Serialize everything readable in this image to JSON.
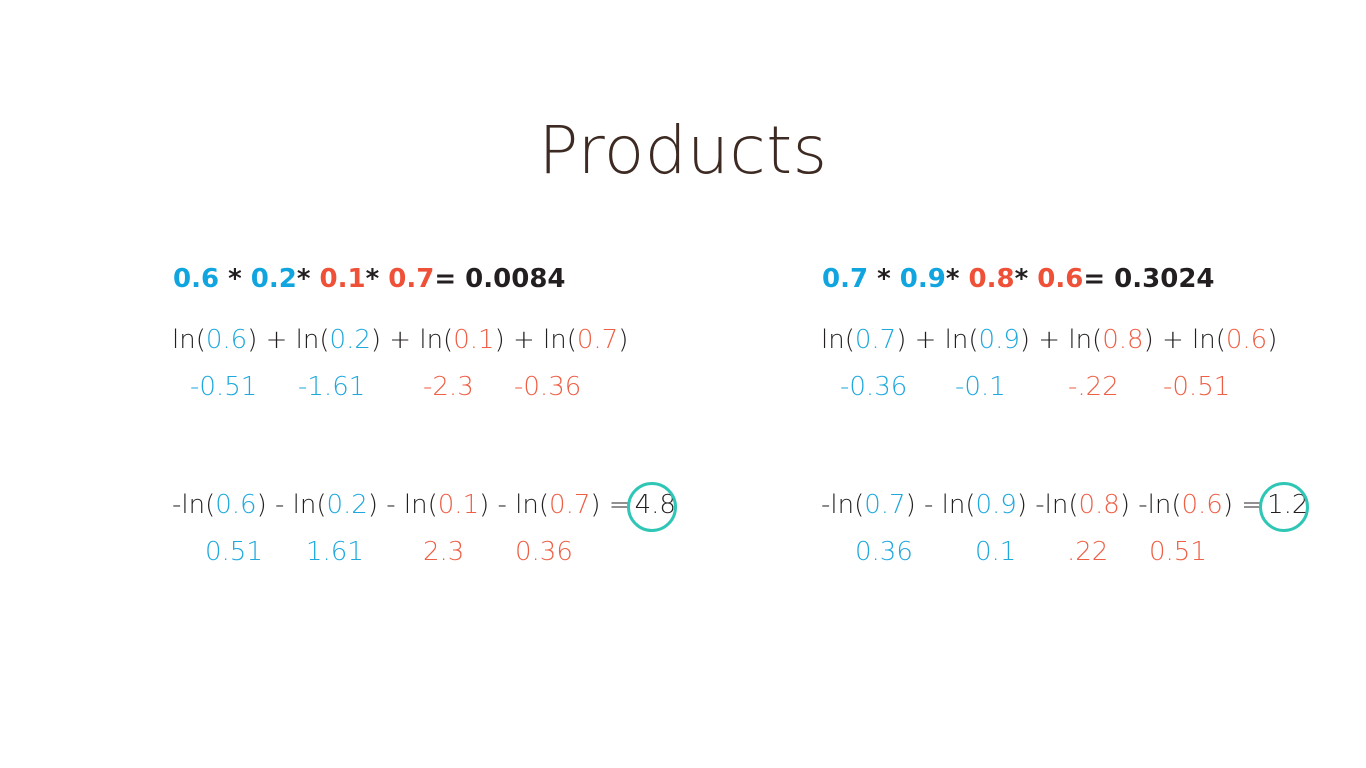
{
  "title": "Products",
  "colors": {
    "blue": "#1ea8dd",
    "red": "#ee5f45",
    "circle": "#2fc6b5",
    "title": "#3d2a22"
  },
  "left": {
    "product": {
      "a": "0.6",
      "star1": "*",
      "b": "0.2",
      "star2": "*",
      "c": "0.1",
      "star3": "*",
      "d": "0.7",
      "result": "= 0.0084"
    },
    "ln": {
      "p0": "ln(",
      "a": "0.6",
      "p1": ") + ln(",
      "b": "0.2",
      "p2": ") + ln(",
      "c": "0.1",
      "p3": ") + ln(",
      "d": "0.7",
      "p4": ")"
    },
    "ln_values": [
      "-0.51",
      "-1.61",
      "-2.3",
      "-0.36"
    ],
    "neg": {
      "p0": "-ln(",
      "a": "0.6",
      "p1": ") - ln(",
      "b": "0.2",
      "p2": ") - ln(",
      "c": "0.1",
      "p3": ") - ln(",
      "d": "0.7",
      "p4": ")   =",
      "result": "4.8"
    },
    "neg_values": [
      "0.51",
      "1.61",
      "2.3",
      "0.36"
    ]
  },
  "right": {
    "product": {
      "a": "0.7",
      "star1": "*",
      "b": "0.9",
      "star2": "*",
      "c": "0.8",
      "star3": "*",
      "d": "0.6",
      "result": "= 0.3024"
    },
    "ln": {
      "p0": "ln(",
      "a": "0.7",
      "p1": ") + ln(",
      "b": "0.9",
      "p2": ") + ln(",
      "c": "0.8",
      "p3": ") + ln(",
      "d": "0.6",
      "p4": ")"
    },
    "ln_values": [
      "-0.36",
      "-0.1",
      "-.22",
      "-0.51"
    ],
    "neg": {
      "p0": "-ln(",
      "a": "0.7",
      "p1": ") - ln(",
      "b": "0.9",
      "p2": ") -ln(",
      "c": "0.8",
      "p3": ") -ln(",
      "d": "0.6",
      "p4": ") =",
      "result": "1.2"
    },
    "neg_values": [
      "0.36",
      "0.1",
      ".22",
      "0.51"
    ]
  }
}
